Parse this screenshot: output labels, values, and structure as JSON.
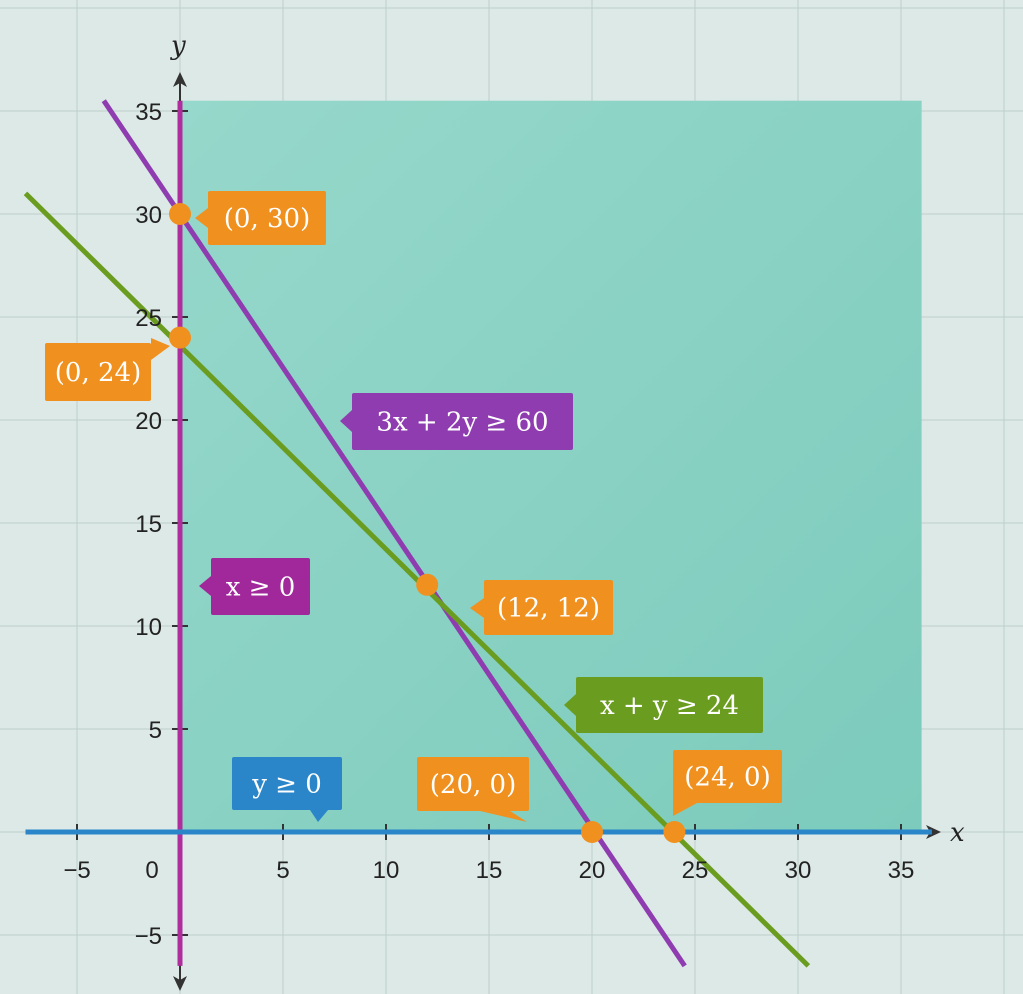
{
  "chart_data": {
    "type": "line",
    "xlabel": "x",
    "ylabel": "y",
    "xlim": [
      -7.5,
      36.5
    ],
    "ylim": [
      -6.5,
      36
    ],
    "grid": true,
    "x_ticks": [
      -5,
      0,
      5,
      10,
      15,
      20,
      25,
      30,
      35
    ],
    "x_tick_labels": [
      "−5",
      "0",
      "5",
      "10",
      "15",
      "20",
      "25",
      "30",
      "35"
    ],
    "y_ticks": [
      -5,
      5,
      10,
      15,
      20,
      25,
      30,
      35
    ],
    "y_tick_labels": [
      "−5",
      "5",
      "10",
      "15",
      "20",
      "25",
      "30",
      "35"
    ],
    "feasible_region": {
      "x_min": 0,
      "x_max": 36,
      "y_min": 0,
      "y_max": 35.5,
      "color": "#7fd0c1"
    },
    "series": [
      {
        "name": "3x + 2y ≥ 60",
        "x": [
          -3.7,
          24.5
        ],
        "y": [
          35.5,
          -6.5
        ],
        "color": "#8e3cb0"
      },
      {
        "name": "x + y ≥ 24",
        "x": [
          -7.5,
          30.5
        ],
        "y": [
          31,
          -6.5
        ],
        "color": "#6a9c1f"
      },
      {
        "name": "x ≥ 0",
        "x": [
          0,
          0
        ],
        "y": [
          -6.5,
          35.5
        ],
        "color": "#b02d9e"
      },
      {
        "name": "y ≥ 0",
        "x": [
          -7.5,
          36.5
        ],
        "y": [
          0,
          0
        ],
        "color": "#2a86c9"
      }
    ],
    "constraint_labels": [
      {
        "text": "3x + 2y ≥ 60",
        "color": "#8e3cb0"
      },
      {
        "text": "x + y ≥ 24",
        "color": "#6a9c1f"
      },
      {
        "text": "x ≥ 0",
        "color": "#a0289a"
      },
      {
        "text": "y ≥ 0",
        "color": "#2a86c9"
      }
    ],
    "points": [
      {
        "x": 0,
        "y": 30,
        "label": "(0, 30)"
      },
      {
        "x": 0,
        "y": 24,
        "label": "(0, 24)"
      },
      {
        "x": 12,
        "y": 12,
        "label": "(12, 12)"
      },
      {
        "x": 20,
        "y": 0,
        "label": "(20, 0)"
      },
      {
        "x": 24,
        "y": 0,
        "label": "(24, 0)"
      }
    ],
    "point_color": "#f0901e"
  }
}
